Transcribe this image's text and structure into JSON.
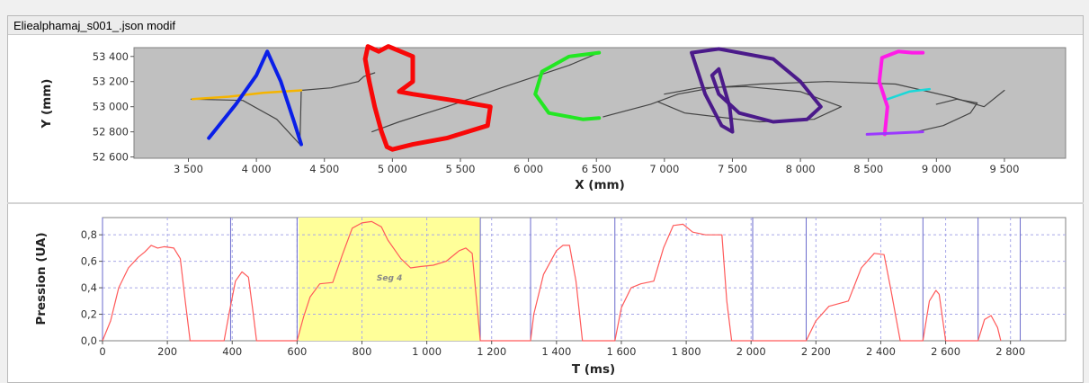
{
  "window": {
    "title": "Eliealphamaj_s001_.json modif"
  },
  "chart_data": [
    {
      "type": "line",
      "name_role": "trajectory",
      "xlabel": "X (mm)",
      "ylabel": "Y (mm)",
      "xlim": [
        3100,
        9950
      ],
      "ylim": [
        52590,
        53470
      ],
      "xticks": [
        3500,
        4000,
        4500,
        5000,
        5500,
        6000,
        6500,
        7000,
        7500,
        8000,
        8500,
        9000,
        9500
      ],
      "xtick_labels": [
        "3 500",
        "4 000",
        "4 500",
        "5 000",
        "5 500",
        "6 000",
        "6 500",
        "7 000",
        "7 500",
        "8 000",
        "8 500",
        "9 000",
        "9 500"
      ],
      "yticks": [
        52600,
        52800,
        53000,
        53200,
        53400
      ],
      "ytick_labels": [
        "52 600",
        "52 800",
        "53 000",
        "53 200",
        "53 400"
      ],
      "grid": false,
      "background": "#c0c0c0",
      "series": [
        {
          "color": "#444444",
          "width": 1.2,
          "points": [
            [
              3520,
              53060
            ],
            [
              3900,
              53050
            ],
            [
              4150,
              52900
            ],
            [
              4320,
              52700
            ],
            [
              4330,
              53130
            ],
            [
              4550,
              53150
            ],
            [
              4750,
              53200
            ],
            [
              4790,
              53240
            ],
            [
              4870,
              53270
            ]
          ]
        },
        {
          "color": "#444444",
          "width": 1.2,
          "points": [
            [
              6520,
              53430
            ],
            [
              6300,
              53330
            ],
            [
              5800,
              53150
            ],
            [
              5400,
              53000
            ],
            [
              5050,
              52880
            ],
            [
              4850,
              52800
            ]
          ]
        },
        {
          "color": "#444444",
          "width": 1.2,
          "points": [
            [
              6550,
              52920
            ],
            [
              6900,
              53020
            ],
            [
              7100,
              53100
            ],
            [
              7350,
              53150
            ],
            [
              7700,
              53180
            ],
            [
              8200,
              53200
            ],
            [
              8700,
              53180
            ],
            [
              9100,
              53080
            ],
            [
              9350,
              53000
            ],
            [
              9500,
              53130
            ]
          ]
        },
        {
          "color": "#444444",
          "width": 1.2,
          "points": [
            [
              7000,
              53100
            ],
            [
              7250,
              53150
            ],
            [
              7600,
              53160
            ],
            [
              8000,
              53120
            ],
            [
              8300,
              53000
            ],
            [
              8100,
              52900
            ],
            [
              7700,
              52880
            ],
            [
              7150,
              52950
            ],
            [
              6950,
              53040
            ]
          ]
        },
        {
          "color": "#444444",
          "width": 1.2,
          "points": [
            [
              8550,
              52780
            ],
            [
              8850,
              52800
            ],
            [
              9050,
              52850
            ],
            [
              9250,
              52950
            ],
            [
              9300,
              53030
            ],
            [
              9150,
              53060
            ],
            [
              9000,
              53020
            ]
          ]
        },
        {
          "color": "#f5b400",
          "width": 2.5,
          "points": [
            [
              3530,
              53060
            ],
            [
              3800,
              53080
            ],
            [
              4050,
              53110
            ],
            [
              4330,
              53130
            ]
          ]
        },
        {
          "color": "#0a1fe8",
          "width": 4,
          "points": [
            [
              3650,
              52750
            ],
            [
              3850,
              53020
            ],
            [
              4000,
              53250
            ],
            [
              4080,
              53440
            ],
            [
              4180,
              53200
            ],
            [
              4280,
              52870
            ],
            [
              4330,
              52700
            ]
          ]
        },
        {
          "color": "#f80808",
          "width": 5,
          "points": [
            [
              4900,
              53440
            ],
            [
              4820,
              53480
            ],
            [
              4800,
              53380
            ],
            [
              4830,
              53200
            ],
            [
              4870,
              53000
            ],
            [
              4920,
              52800
            ],
            [
              4960,
              52680
            ],
            [
              5000,
              52660
            ],
            [
              5150,
              52700
            ],
            [
              5400,
              52750
            ],
            [
              5700,
              52850
            ],
            [
              5720,
              53000
            ],
            [
              5450,
              53050
            ],
            [
              5150,
              53100
            ],
            [
              5050,
              53120
            ],
            [
              5150,
              53200
            ],
            [
              5150,
              53400
            ],
            [
              4970,
              53480
            ],
            [
              4900,
              53440
            ]
          ]
        },
        {
          "color": "#22e722",
          "width": 4,
          "points": [
            [
              6520,
              53430
            ],
            [
              6300,
              53400
            ],
            [
              6100,
              53280
            ],
            [
              6050,
              53100
            ],
            [
              6150,
              52950
            ],
            [
              6400,
              52900
            ],
            [
              6520,
              52910
            ]
          ]
        },
        {
          "color": "#4b1a8a",
          "width": 4,
          "points": [
            [
              7200,
              53430
            ],
            [
              7400,
              53460
            ],
            [
              7800,
              53380
            ],
            [
              8000,
              53200
            ],
            [
              8150,
              53000
            ],
            [
              8050,
              52900
            ],
            [
              7800,
              52880
            ],
            [
              7550,
              52950
            ],
            [
              7400,
              53100
            ],
            [
              7350,
              53250
            ],
            [
              7400,
              53300
            ],
            [
              7480,
              53000
            ],
            [
              7500,
              52800
            ],
            [
              7420,
              52850
            ],
            [
              7300,
              53100
            ],
            [
              7200,
              53430
            ]
          ]
        },
        {
          "color": "#ff1ae8",
          "width": 4,
          "points": [
            [
              8620,
              52780
            ],
            [
              8640,
              53000
            ],
            [
              8580,
              53200
            ],
            [
              8600,
              53390
            ],
            [
              8720,
              53440
            ],
            [
              8820,
              53430
            ],
            [
              8900,
              53430
            ]
          ]
        },
        {
          "color": "#9b38ff",
          "width": 3,
          "points": [
            [
              8490,
              52780
            ],
            [
              8700,
              52790
            ],
            [
              8900,
              52800
            ]
          ]
        },
        {
          "color": "#1ad8d8",
          "width": 2.5,
          "points": [
            [
              8640,
              53060
            ],
            [
              8800,
              53120
            ],
            [
              8950,
              53140
            ]
          ]
        }
      ]
    },
    {
      "type": "line",
      "name_role": "pressure",
      "xlabel": "T (ms)",
      "ylabel": "Pression (UA)",
      "xlim": [
        0,
        2970
      ],
      "ylim": [
        0,
        0.93
      ],
      "xticks": [
        0,
        200,
        400,
        600,
        800,
        1000,
        1200,
        1400,
        1600,
        1800,
        2000,
        2200,
        2400,
        2600,
        2800
      ],
      "xtick_labels": [
        "0",
        "200",
        "400",
        "600",
        "800",
        "1 000",
        "1 200",
        "1 400",
        "1 600",
        "1 800",
        "2 000",
        "2 200",
        "2 400",
        "2 600",
        "2 800"
      ],
      "yticks": [
        0.0,
        0.2,
        0.4,
        0.6,
        0.8
      ],
      "ytick_labels": [
        "0,0",
        "0,2",
        "0,4",
        "0,6",
        "0,8"
      ],
      "grid": true,
      "segment_boundaries": [
        0,
        395,
        600,
        1165,
        1320,
        1580,
        2005,
        2170,
        2530,
        2700,
        2830
      ],
      "highlight": {
        "x0": 605,
        "x1": 1165,
        "label": "Seg 4",
        "color": "#ffff99"
      },
      "series": [
        {
          "color": "#ff5a5a",
          "width": 1.2,
          "points": [
            [
              0,
              0
            ],
            [
              25,
              0.15
            ],
            [
              50,
              0.4
            ],
            [
              80,
              0.55
            ],
            [
              110,
              0.63
            ],
            [
              130,
              0.67
            ],
            [
              150,
              0.72
            ],
            [
              170,
              0.7
            ],
            [
              190,
              0.71
            ],
            [
              220,
              0.7
            ],
            [
              240,
              0.62
            ],
            [
              255,
              0.3
            ],
            [
              270,
              0
            ],
            [
              375,
              0
            ],
            [
              390,
              0.2
            ],
            [
              410,
              0.45
            ],
            [
              430,
              0.52
            ],
            [
              450,
              0.48
            ],
            [
              465,
              0.2
            ],
            [
              475,
              0
            ],
            [
              600,
              0
            ],
            [
              620,
              0.18
            ],
            [
              640,
              0.33
            ],
            [
              670,
              0.43
            ],
            [
              710,
              0.44
            ],
            [
              740,
              0.65
            ],
            [
              770,
              0.85
            ],
            [
              800,
              0.89
            ],
            [
              830,
              0.9
            ],
            [
              860,
              0.86
            ],
            [
              880,
              0.76
            ],
            [
              920,
              0.62
            ],
            [
              950,
              0.55
            ],
            [
              980,
              0.56
            ],
            [
              1020,
              0.57
            ],
            [
              1060,
              0.6
            ],
            [
              1100,
              0.68
            ],
            [
              1120,
              0.7
            ],
            [
              1140,
              0.66
            ],
            [
              1165,
              0
            ],
            [
              1320,
              0
            ],
            [
              1330,
              0.2
            ],
            [
              1360,
              0.5
            ],
            [
              1400,
              0.68
            ],
            [
              1420,
              0.72
            ],
            [
              1440,
              0.72
            ],
            [
              1460,
              0.45
            ],
            [
              1480,
              0
            ],
            [
              1580,
              0
            ],
            [
              1600,
              0.25
            ],
            [
              1630,
              0.4
            ],
            [
              1660,
              0.43
            ],
            [
              1700,
              0.45
            ],
            [
              1730,
              0.7
            ],
            [
              1760,
              0.87
            ],
            [
              1790,
              0.88
            ],
            [
              1820,
              0.82
            ],
            [
              1860,
              0.8
            ],
            [
              1890,
              0.8
            ],
            [
              1910,
              0.8
            ],
            [
              1925,
              0.3
            ],
            [
              1940,
              0
            ],
            [
              2170,
              0
            ],
            [
              2200,
              0.15
            ],
            [
              2240,
              0.26
            ],
            [
              2300,
              0.3
            ],
            [
              2340,
              0.55
            ],
            [
              2380,
              0.66
            ],
            [
              2410,
              0.65
            ],
            [
              2430,
              0.4
            ],
            [
              2460,
              0
            ],
            [
              2530,
              0
            ],
            [
              2550,
              0.3
            ],
            [
              2570,
              0.38
            ],
            [
              2580,
              0.35
            ],
            [
              2600,
              0
            ],
            [
              2700,
              0
            ],
            [
              2720,
              0.16
            ],
            [
              2740,
              0.19
            ],
            [
              2760,
              0.1
            ],
            [
              2770,
              0
            ]
          ]
        }
      ]
    }
  ]
}
